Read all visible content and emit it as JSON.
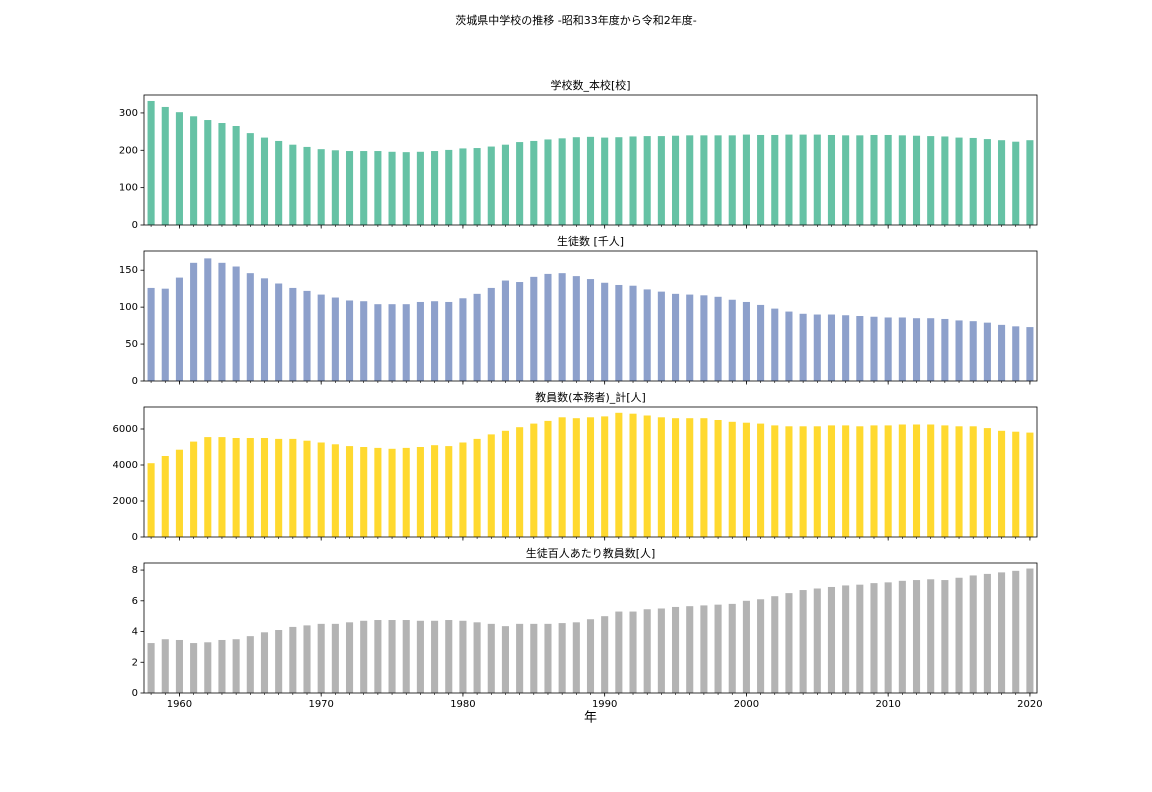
{
  "suptitle": "茨城県中学校の推移 -昭和33年度から令和2年度-",
  "chart_data": [
    {
      "type": "bar",
      "title": "学校数_本校[校]",
      "color": "#66c2a5",
      "x": [
        1958,
        1959,
        1960,
        1961,
        1962,
        1963,
        1964,
        1965,
        1966,
        1967,
        1968,
        1969,
        1970,
        1971,
        1972,
        1973,
        1974,
        1975,
        1976,
        1977,
        1978,
        1979,
        1980,
        1981,
        1982,
        1983,
        1984,
        1985,
        1986,
        1987,
        1988,
        1989,
        1990,
        1991,
        1992,
        1993,
        1994,
        1995,
        1996,
        1997,
        1998,
        1999,
        2000,
        2001,
        2002,
        2003,
        2004,
        2005,
        2006,
        2007,
        2008,
        2009,
        2010,
        2011,
        2012,
        2013,
        2014,
        2015,
        2016,
        2017,
        2018,
        2019,
        2020
      ],
      "values": [
        332,
        316,
        302,
        291,
        281,
        273,
        265,
        246,
        234,
        225,
        215,
        209,
        203,
        200,
        198,
        198,
        198,
        196,
        195,
        196,
        198,
        201,
        205,
        206,
        210,
        215,
        222,
        225,
        229,
        232,
        235,
        236,
        234,
        235,
        237,
        238,
        238,
        239,
        240,
        240,
        240,
        240,
        242,
        241,
        241,
        242,
        242,
        242,
        241,
        240,
        240,
        241,
        241,
        240,
        239,
        238,
        237,
        234,
        233,
        230,
        227,
        223,
        227
      ],
      "xlim": [
        1957.5,
        2020.5
      ],
      "xticks": [
        1960,
        1970,
        1980,
        1990,
        2000,
        2010,
        2020
      ],
      "ylim": [
        0,
        348
      ],
      "yticks": [
        0,
        100,
        200,
        300
      ]
    },
    {
      "type": "bar",
      "title": "生徒数 [千人]",
      "color": "#8da0cb",
      "x": [
        1958,
        1959,
        1960,
        1961,
        1962,
        1963,
        1964,
        1965,
        1966,
        1967,
        1968,
        1969,
        1970,
        1971,
        1972,
        1973,
        1974,
        1975,
        1976,
        1977,
        1978,
        1979,
        1980,
        1981,
        1982,
        1983,
        1984,
        1985,
        1986,
        1987,
        1988,
        1989,
        1990,
        1991,
        1992,
        1993,
        1994,
        1995,
        1996,
        1997,
        1998,
        1999,
        2000,
        2001,
        2002,
        2003,
        2004,
        2005,
        2006,
        2007,
        2008,
        2009,
        2010,
        2011,
        2012,
        2013,
        2014,
        2015,
        2016,
        2017,
        2018,
        2019,
        2020
      ],
      "values": [
        126,
        125,
        140,
        160,
        166,
        160,
        155,
        146,
        139,
        132,
        126,
        122,
        117,
        113,
        109,
        108,
        104,
        104,
        104,
        107,
        108,
        107,
        112,
        118,
        126,
        136,
        134,
        141,
        145,
        146,
        142,
        138,
        133,
        130,
        129,
        124,
        121,
        118,
        117,
        116,
        114,
        110,
        107,
        103,
        98,
        94,
        91,
        90,
        90,
        89,
        88,
        87,
        86,
        86,
        85,
        85,
        84,
        82,
        81,
        79,
        76,
        74,
        73
      ],
      "xlim": [
        1957.5,
        2020.5
      ],
      "xticks": [
        1960,
        1970,
        1980,
        1990,
        2000,
        2010,
        2020
      ],
      "ylim": [
        0,
        176
      ],
      "yticks": [
        0,
        50,
        100,
        150
      ]
    },
    {
      "type": "bar",
      "title": "教員数(本務者)_計[人]",
      "color": "#ffd92f",
      "x": [
        1958,
        1959,
        1960,
        1961,
        1962,
        1963,
        1964,
        1965,
        1966,
        1967,
        1968,
        1969,
        1970,
        1971,
        1972,
        1973,
        1974,
        1975,
        1976,
        1977,
        1978,
        1979,
        1980,
        1981,
        1982,
        1983,
        1984,
        1985,
        1986,
        1987,
        1988,
        1989,
        1990,
        1991,
        1992,
        1993,
        1994,
        1995,
        1996,
        1997,
        1998,
        1999,
        2000,
        2001,
        2002,
        2003,
        2004,
        2005,
        2006,
        2007,
        2008,
        2009,
        2010,
        2011,
        2012,
        2013,
        2014,
        2015,
        2016,
        2017,
        2018,
        2019,
        2020
      ],
      "values": [
        4100,
        4500,
        4850,
        5300,
        5550,
        5550,
        5500,
        5500,
        5500,
        5450,
        5450,
        5350,
        5250,
        5150,
        5050,
        5000,
        4950,
        4900,
        4950,
        5000,
        5100,
        5050,
        5250,
        5450,
        5700,
        5900,
        6100,
        6300,
        6450,
        6650,
        6600,
        6650,
        6700,
        6900,
        6850,
        6750,
        6650,
        6600,
        6600,
        6600,
        6500,
        6400,
        6350,
        6300,
        6200,
        6150,
        6150,
        6150,
        6200,
        6200,
        6150,
        6200,
        6200,
        6250,
        6250,
        6250,
        6200,
        6150,
        6150,
        6050,
        5900,
        5850,
        5800
      ],
      "xlim": [
        1957.5,
        2020.5
      ],
      "xticks": [
        1960,
        1970,
        1980,
        1990,
        2000,
        2010,
        2020
      ],
      "ylim": [
        0,
        7222
      ],
      "yticks": [
        0,
        2000,
        4000,
        6000
      ]
    },
    {
      "type": "bar",
      "title": "生徒百人あたり教員数[人]",
      "color": "#b3b3b3",
      "xlabel": "年",
      "x": [
        1958,
        1959,
        1960,
        1961,
        1962,
        1963,
        1964,
        1965,
        1966,
        1967,
        1968,
        1969,
        1970,
        1971,
        1972,
        1973,
        1974,
        1975,
        1976,
        1977,
        1978,
        1979,
        1980,
        1981,
        1982,
        1983,
        1984,
        1985,
        1986,
        1987,
        1988,
        1989,
        1990,
        1991,
        1992,
        1993,
        1994,
        1995,
        1996,
        1997,
        1998,
        1999,
        2000,
        2001,
        2002,
        2003,
        2004,
        2005,
        2006,
        2007,
        2008,
        2009,
        2010,
        2011,
        2012,
        2013,
        2014,
        2015,
        2016,
        2017,
        2018,
        2019,
        2020
      ],
      "values": [
        3.25,
        3.5,
        3.45,
        3.25,
        3.3,
        3.45,
        3.5,
        3.7,
        3.95,
        4.1,
        4.3,
        4.4,
        4.5,
        4.5,
        4.6,
        4.7,
        4.75,
        4.75,
        4.75,
        4.7,
        4.7,
        4.75,
        4.7,
        4.6,
        4.5,
        4.35,
        4.5,
        4.5,
        4.5,
        4.55,
        4.6,
        4.8,
        5.0,
        5.3,
        5.3,
        5.45,
        5.5,
        5.6,
        5.65,
        5.7,
        5.75,
        5.8,
        6.0,
        6.1,
        6.3,
        6.5,
        6.7,
        6.8,
        6.9,
        7.0,
        7.05,
        7.15,
        7.2,
        7.3,
        7.35,
        7.4,
        7.35,
        7.5,
        7.65,
        7.75,
        7.85,
        7.95,
        8.1
      ],
      "xlim": [
        1957.5,
        2020.5
      ],
      "xticks": [
        1960,
        1970,
        1980,
        1990,
        2000,
        2010,
        2020
      ],
      "ylim": [
        0,
        8.46
      ],
      "yticks": [
        0,
        2,
        4,
        6,
        8
      ]
    }
  ]
}
